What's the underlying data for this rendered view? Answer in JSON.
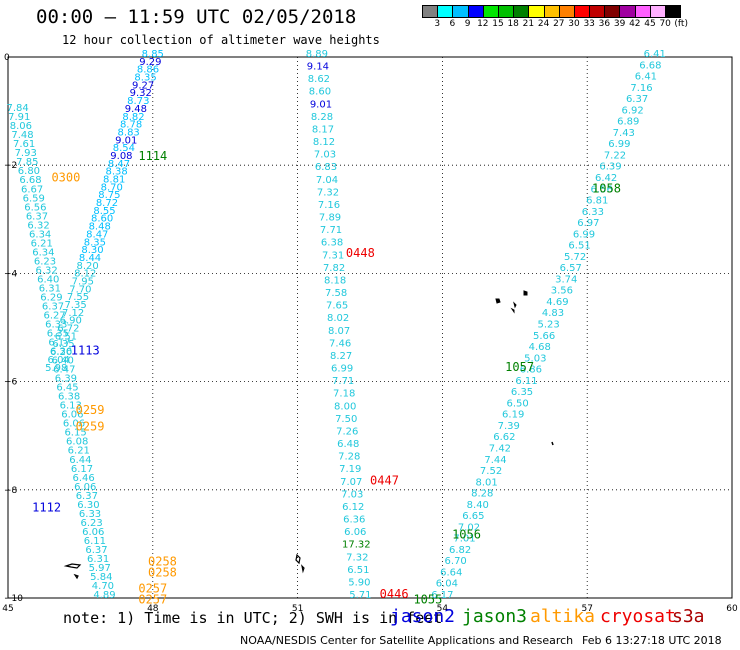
{
  "title": "00:00 – 11:59 UTC 02/05/2018",
  "subtitle": "12 hour collection of altimeter wave heights",
  "colorbar": {
    "labels": [
      "3",
      "6",
      "9",
      "12",
      "15",
      "18",
      "21",
      "24",
      "27",
      "30",
      "33",
      "36",
      "39",
      "42",
      "45",
      "70"
    ],
    "unit": "(ft)",
    "colors": [
      "#808080",
      "#00ffff",
      "#00bfff",
      "#0000ff",
      "#00e600",
      "#00c000",
      "#008000",
      "#ffff00",
      "#ffc000",
      "#ff8000",
      "#ff0000",
      "#c00000",
      "#800000",
      "#a000a0",
      "#ff60ff",
      "#ffb0ff",
      "#000000"
    ]
  },
  "axes": {
    "x_ticks": [
      "45",
      "48",
      "51",
      "54",
      "57",
      "60"
    ],
    "y_ticks": [
      "0",
      "−2",
      "−4",
      "−6",
      "−8",
      "−10"
    ]
  },
  "track_colors": {
    "cyan": "#22c8dc",
    "lightblue": "#00bfff",
    "darkblue": "#0000dd",
    "green": "#008000",
    "orange": "#ff9900",
    "red": "#ee0000"
  },
  "tracks": {
    "jason2_a": {
      "lon_start": 48.0,
      "lat_start": 0.0,
      "lon_end": 46.0,
      "lat_end": -5.8,
      "values": [
        "8.85",
        "9.29",
        "8.86",
        "8.35",
        "9.27",
        "9.32",
        "8.73",
        "9.48",
        "8.82",
        "8.78",
        "8.83",
        "9.01",
        "8.54",
        "9.08",
        "8.47",
        "8.38",
        "8.81",
        "8.70",
        "8.75",
        "8.72",
        "8.55",
        "8.60",
        "8.48",
        "8.47",
        "8.35",
        "8.30",
        "8.44",
        "8.20",
        "8.12",
        "7.95",
        "7.70",
        "7.55",
        "7.35",
        "7.12",
        "6.90",
        "6.72",
        "6.51",
        "6.35",
        "6.20",
        "6.04",
        "5.98"
      ],
      "colors": [
        "lightblue",
        "darkblue",
        "lightblue",
        "lightblue",
        "darkblue",
        "darkblue",
        "lightblue",
        "darkblue",
        "lightblue",
        "lightblue",
        "lightblue",
        "darkblue",
        "lightblue",
        "darkblue",
        "lightblue",
        "lightblue",
        "lightblue",
        "lightblue",
        "lightblue",
        "lightblue",
        "lightblue",
        "lightblue",
        "lightblue",
        "lightblue",
        "lightblue",
        "lightblue",
        "lightblue",
        "cyan",
        "cyan",
        "cyan",
        "cyan",
        "cyan",
        "cyan",
        "cyan",
        "cyan",
        "cyan",
        "cyan",
        "cyan",
        "cyan",
        "cyan",
        "cyan"
      ],
      "time_labels": [
        {
          "text": "1114",
          "lon": 48.0,
          "lat": -1.9,
          "color": "green"
        },
        {
          "text": "1113",
          "lon": 46.6,
          "lat": -5.5,
          "color": "darkblue"
        },
        {
          "text": "1112",
          "lon": 45.8,
          "lat": -8.4,
          "color": "darkblue"
        }
      ]
    },
    "altika_a": {
      "lon_start": 45.2,
      "lat_start": -1.0,
      "lon_end": 47.0,
      "lat_end": -10.0,
      "values": [
        "7.84",
        "7.91",
        "8.06",
        "7.48",
        "7.61",
        "7.93",
        "7.85",
        "6.80",
        "6.68",
        "6.67",
        "6.59",
        "6.56",
        "6.37",
        "6.32",
        "6.34",
        "6.21",
        "6.34",
        "6.23",
        "6.32",
        "6.40",
        "6.31",
        "6.29",
        "6.37",
        "6.27",
        "6.33",
        "6.35",
        "6.17",
        "6.36",
        "6.40",
        "6.47",
        "6.39",
        "6.45",
        "6.38",
        "6.13",
        "6.06",
        "6.06",
        "6.15",
        "6.08",
        "6.21",
        "6.44",
        "6.17",
        "6.46",
        "6.06",
        "6.37",
        "6.30",
        "6.33",
        "6.23",
        "6.06",
        "6.11",
        "6.37",
        "6.31",
        "5.97",
        "5.84",
        "4.70",
        "4.89"
      ],
      "time_labels": [
        {
          "text": "0300",
          "lon": 46.2,
          "lat": -2.3,
          "color": "orange"
        },
        {
          "text": "0259",
          "lon": 46.7,
          "lat": -6.6,
          "color": "orange"
        },
        {
          "text": "0259",
          "lon": 46.7,
          "lat": -6.9,
          "color": "orange"
        },
        {
          "text": "0258",
          "lon": 48.2,
          "lat": -9.4,
          "color": "orange"
        },
        {
          "text": "0258",
          "lon": 48.2,
          "lat": -9.6,
          "color": "orange"
        },
        {
          "text": "0257",
          "lon": 48.0,
          "lat": -9.9,
          "color": "orange"
        },
        {
          "text": "0257",
          "lon": 48.0,
          "lat": -10.1,
          "color": "orange"
        }
      ]
    },
    "cryosat_a": {
      "lon_start": 51.4,
      "lat_start": 0.0,
      "lon_end": 52.3,
      "lat_end": -10.0,
      "values": [
        "8.89",
        "9.14",
        "8.62",
        "8.60",
        "9.01",
        "8.28",
        "8.17",
        "8.12",
        "7.03",
        "6.83",
        "7.04",
        "7.32",
        "7.16",
        "7.89",
        "7.71",
        "6.38",
        "7.31",
        "7.82",
        "8.18",
        "7.58",
        "7.65",
        "8.02",
        "8.07",
        "7.46",
        "8.27",
        "6.99",
        "7.71",
        "7.18",
        "8.00",
        "7.50",
        "7.26",
        "6.48",
        "7.28",
        "7.19",
        "7.07",
        "7.03",
        "6.12",
        "6.36",
        "6.06",
        "17.32",
        "7.32",
        "6.51",
        "5.90",
        "5.71"
      ],
      "colors": [
        "cyan",
        "darkblue",
        "cyan",
        "cyan",
        "darkblue",
        "cyan",
        "cyan",
        "cyan",
        "cyan",
        "cyan",
        "cyan",
        "cyan",
        "cyan",
        "cyan",
        "cyan",
        "cyan",
        "cyan",
        "cyan",
        "cyan",
        "cyan",
        "cyan",
        "cyan",
        "cyan",
        "cyan",
        "cyan",
        "cyan",
        "cyan",
        "cyan",
        "cyan",
        "cyan",
        "cyan",
        "cyan",
        "cyan",
        "cyan",
        "cyan",
        "cyan",
        "cyan",
        "cyan",
        "cyan",
        "green",
        "cyan",
        "cyan",
        "cyan",
        "cyan"
      ],
      "time_labels": [
        {
          "text": "0448",
          "lon": 52.3,
          "lat": -3.7,
          "color": "red"
        },
        {
          "text": "0447",
          "lon": 52.8,
          "lat": -7.9,
          "color": "red"
        },
        {
          "text": "0446",
          "lon": 53.0,
          "lat": -10.0,
          "color": "red"
        }
      ]
    },
    "jason3_a": {
      "lon_start": 58.4,
      "lat_start": 0.0,
      "lon_end": 54.0,
      "lat_end": -10.0,
      "values": [
        "6.41",
        "6.68",
        "6.41",
        "7.16",
        "6.37",
        "6.92",
        "6.89",
        "7.43",
        "6.99",
        "7.22",
        "6.39",
        "6.42",
        "6.56",
        "6.81",
        "6.33",
        "6.97",
        "6.99",
        "6.51",
        "5.72",
        "6.57",
        "3.74",
        "3.56",
        "4.69",
        "4.83",
        "5.23",
        "5.66",
        "4.68",
        "5.03",
        "6.86",
        "6.11",
        "6.35",
        "6.50",
        "6.19",
        "7.39",
        "6.62",
        "7.42",
        "7.44",
        "7.52",
        "8.01",
        "8.28",
        "8.40",
        "6.65",
        "7.02",
        "7.01",
        "6.82",
        "6.70",
        "6.64",
        "6.04",
        "6.17"
      ],
      "time_labels": [
        {
          "text": "1058",
          "lon": 57.4,
          "lat": -2.5,
          "color": "green"
        },
        {
          "text": "1057",
          "lon": 55.6,
          "lat": -5.8,
          "color": "green"
        },
        {
          "text": "1056",
          "lon": 54.5,
          "lat": -8.9,
          "color": "green"
        },
        {
          "text": "1055",
          "lon": 53.7,
          "lat": -10.1,
          "color": "green"
        }
      ]
    }
  },
  "note": "note: 1) Time is in UTC; 2) SWH is in feet",
  "satellites": [
    {
      "name": "jason2",
      "color": "#0000dd"
    },
    {
      "name": "jason3",
      "color": "#008000"
    },
    {
      "name": "altika",
      "color": "#ff9900"
    },
    {
      "name": "cryosat",
      "color": "#ee0000"
    },
    {
      "name": "s3a",
      "color": "#aa0000"
    }
  ],
  "footer": "NOAA/NESDIS Center for Satellite Applications and Research",
  "footer_timestamp": "Feb 6 13:27:18 UTC 2018"
}
